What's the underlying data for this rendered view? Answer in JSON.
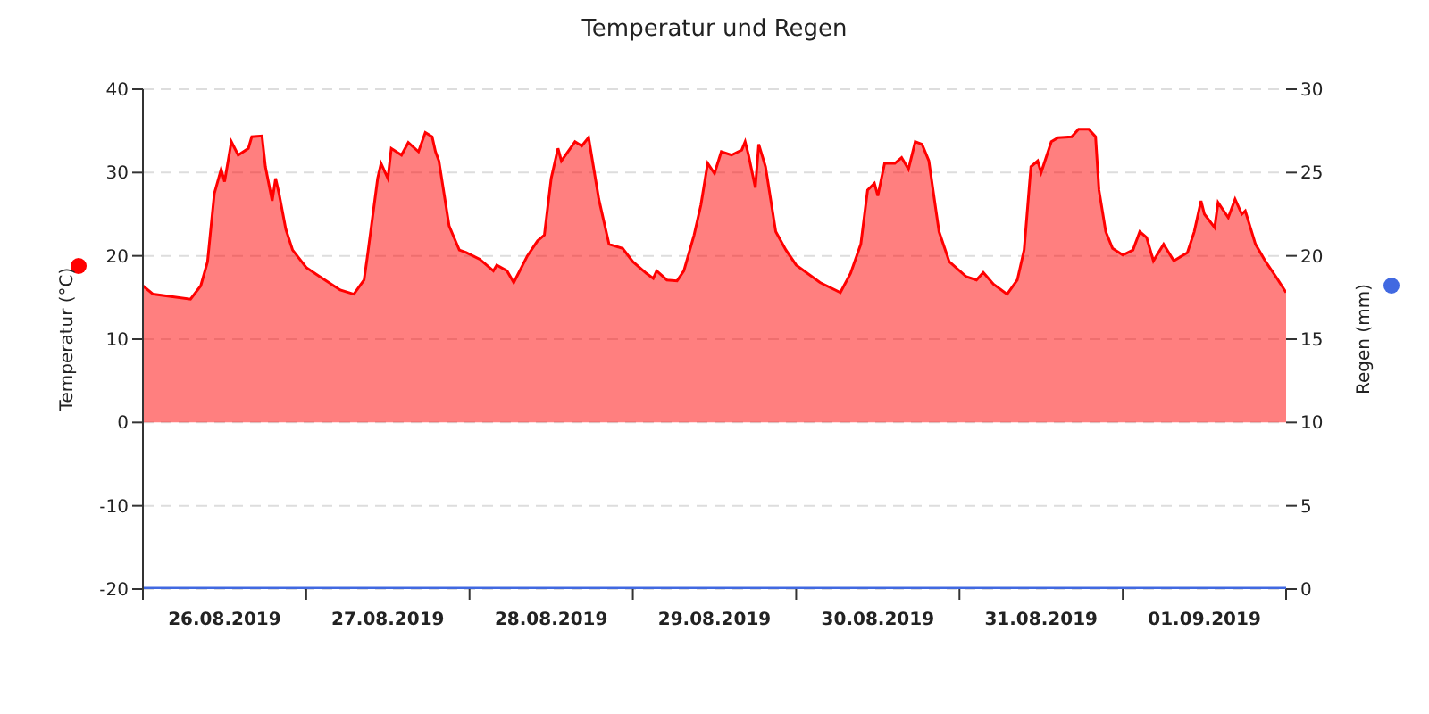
{
  "chart_data": {
    "type": "area",
    "title": "Temperatur und Regen",
    "ylabel": "Temperatur (°C)",
    "y2label": "Regen (mm)",
    "xlim": [
      "2019-08-26T00:00",
      "2019-09-02T00:00"
    ],
    "xticks": [
      {
        "value": "2019-08-26T00:00",
        "label": null
      },
      {
        "value": "2019-08-26T12:00",
        "label": "26.08.2019"
      },
      {
        "value": "2019-08-27T00:00",
        "label": null
      },
      {
        "value": "2019-08-27T12:00",
        "label": "27.08.2019"
      },
      {
        "value": "2019-08-28T00:00",
        "label": null
      },
      {
        "value": "2019-08-28T12:00",
        "label": "28.08.2019"
      },
      {
        "value": "2019-08-29T00:00",
        "label": null
      },
      {
        "value": "2019-08-29T12:00",
        "label": "29.08.2019"
      },
      {
        "value": "2019-08-30T00:00",
        "label": null
      },
      {
        "value": "2019-08-30T12:00",
        "label": "30.08.2019"
      },
      {
        "value": "2019-08-31T00:00",
        "label": null
      },
      {
        "value": "2019-08-31T12:00",
        "label": "31.08.2019"
      },
      {
        "value": "2019-09-01T00:00",
        "label": null
      },
      {
        "value": "2019-09-01T12:00",
        "label": "01.09.2019"
      },
      {
        "value": "2019-09-02T00:00",
        "label": null
      }
    ],
    "ylim": [
      -20,
      40
    ],
    "yticks": [
      -20,
      -10,
      0,
      10,
      20,
      30,
      40
    ],
    "y2lim": [
      0,
      30
    ],
    "y2ticks": [
      0,
      5,
      10,
      15,
      20,
      25,
      30
    ],
    "grid": "y",
    "legend": false,
    "series": [
      {
        "color": "#ff0000",
        "x": [
          "2019-08-26T00:00",
          "2019-08-26T01:30",
          "2019-08-26T07:00",
          "2019-08-26T08:30",
          "2019-08-26T09:30",
          "2019-08-26T10:30",
          "2019-08-26T11:30",
          "2019-08-26T12:00",
          "2019-08-26T13:00",
          "2019-08-26T14:00",
          "2019-08-26T15:30",
          "2019-08-26T16:00",
          "2019-08-26T17:30",
          "2019-08-26T18:00",
          "2019-08-26T19:00",
          "2019-08-26T19:30",
          "2019-08-26T20:00",
          "2019-08-26T21:00",
          "2019-08-26T22:00",
          "2019-08-27T00:00",
          "2019-08-27T02:00",
          "2019-08-27T05:00",
          "2019-08-27T07:00",
          "2019-08-27T08:30",
          "2019-08-27T09:00",
          "2019-08-27T10:30",
          "2019-08-27T11:00",
          "2019-08-27T12:00",
          "2019-08-27T12:30",
          "2019-08-27T14:00",
          "2019-08-27T15:00",
          "2019-08-27T16:30",
          "2019-08-27T17:30",
          "2019-08-27T18:30",
          "2019-08-27T19:00",
          "2019-08-27T19:30",
          "2019-08-27T21:00",
          "2019-08-27T22:30",
          "2019-08-27T23:30",
          "2019-08-28T01:30",
          "2019-08-28T03:30",
          "2019-08-28T04:00",
          "2019-08-28T05:30",
          "2019-08-28T06:30",
          "2019-08-28T08:30",
          "2019-08-28T10:00",
          "2019-08-28T11:00",
          "2019-08-28T12:00",
          "2019-08-28T13:00",
          "2019-08-28T13:30",
          "2019-08-28T15:30",
          "2019-08-28T16:30",
          "2019-08-28T17:30",
          "2019-08-28T19:00",
          "2019-08-28T20:30",
          "2019-08-28T22:30",
          "2019-08-29T00:00",
          "2019-08-29T02:00",
          "2019-08-29T03:00",
          "2019-08-29T03:30",
          "2019-08-29T05:00",
          "2019-08-29T06:30",
          "2019-08-29T07:30",
          "2019-08-29T09:00",
          "2019-08-29T10:00",
          "2019-08-29T11:00",
          "2019-08-29T12:00",
          "2019-08-29T13:00",
          "2019-08-29T14:30",
          "2019-08-29T16:00",
          "2019-08-29T16:30",
          "2019-08-29T17:00",
          "2019-08-29T18:00",
          "2019-08-29T18:30",
          "2019-08-29T19:30",
          "2019-08-29T21:00",
          "2019-08-29T22:30",
          "2019-08-30T00:00",
          "2019-08-30T03:30",
          "2019-08-30T06:30",
          "2019-08-30T08:00",
          "2019-08-30T09:30",
          "2019-08-30T10:30",
          "2019-08-30T11:30",
          "2019-08-30T12:00",
          "2019-08-30T13:00",
          "2019-08-30T14:30",
          "2019-08-30T15:30",
          "2019-08-30T16:30",
          "2019-08-30T17:30",
          "2019-08-30T18:30",
          "2019-08-30T19:30",
          "2019-08-30T20:30",
          "2019-08-30T21:00",
          "2019-08-30T22:30",
          "2019-08-31T01:00",
          "2019-08-31T02:30",
          "2019-08-31T03:30",
          "2019-08-31T05:00",
          "2019-08-31T07:00",
          "2019-08-31T08:30",
          "2019-08-31T09:30",
          "2019-08-31T10:30",
          "2019-08-31T11:30",
          "2019-08-31T12:00",
          "2019-08-31T13:30",
          "2019-08-31T14:30",
          "2019-08-31T16:30",
          "2019-08-31T17:30",
          "2019-08-31T19:00",
          "2019-08-31T20:00",
          "2019-08-31T20:30",
          "2019-08-31T21:30",
          "2019-08-31T22:30",
          "2019-09-01T00:00",
          "2019-09-01T01:30",
          "2019-09-01T02:30",
          "2019-09-01T03:30",
          "2019-09-01T04:30",
          "2019-09-01T06:00",
          "2019-09-01T07:30",
          "2019-09-01T09:30",
          "2019-09-01T10:30",
          "2019-09-01T11:30",
          "2019-09-01T12:00",
          "2019-09-01T13:30",
          "2019-09-01T14:00",
          "2019-09-01T15:30",
          "2019-09-01T16:30",
          "2019-09-01T17:30",
          "2019-09-01T18:00",
          "2019-09-01T19:30",
          "2019-09-01T21:00",
          "2019-09-01T22:30",
          "2019-09-02T00:00"
        ],
        "values": [
          16.4,
          15.4,
          14.8,
          16.4,
          19.3,
          27.5,
          30.4,
          28.9,
          33.7,
          32.1,
          32.9,
          34.3,
          34.4,
          30.7,
          26.6,
          29.3,
          27.5,
          23.2,
          20.7,
          18.6,
          17.5,
          15.9,
          15.4,
          17.1,
          20.0,
          29.3,
          31.1,
          29.3,
          32.9,
          32.1,
          33.6,
          32.5,
          34.8,
          34.3,
          32.5,
          31.4,
          23.6,
          20.7,
          20.4,
          19.6,
          18.2,
          18.9,
          18.2,
          16.8,
          20.0,
          21.8,
          22.5,
          29.3,
          32.9,
          31.4,
          33.7,
          33.2,
          34.2,
          26.8,
          21.4,
          20.9,
          19.3,
          17.9,
          17.3,
          18.2,
          17.1,
          17.0,
          18.2,
          22.5,
          26.1,
          31.1,
          29.9,
          32.5,
          32.1,
          32.7,
          33.7,
          32.1,
          28.2,
          33.4,
          30.7,
          22.9,
          20.7,
          18.9,
          16.8,
          15.6,
          17.9,
          21.4,
          27.9,
          28.7,
          27.2,
          31.1,
          31.1,
          31.8,
          30.4,
          33.7,
          33.4,
          31.4,
          25.7,
          22.9,
          19.3,
          17.5,
          17.1,
          18.0,
          16.6,
          15.4,
          17.1,
          20.7,
          30.7,
          31.4,
          30.0,
          33.7,
          34.2,
          34.3,
          35.2,
          35.2,
          34.3,
          27.9,
          22.9,
          20.9,
          20.1,
          20.7,
          22.9,
          22.2,
          19.4,
          21.4,
          19.4,
          20.4,
          22.9,
          26.6,
          25.0,
          23.4,
          26.4,
          24.6,
          26.8,
          25.0,
          25.4,
          21.4,
          19.3,
          17.5,
          15.6
        ]
      },
      {
        "type": "line",
        "axis": "y2",
        "color": "#4169e1",
        "x": [
          "2019-08-26T00:00",
          "2019-09-02T00:00"
        ],
        "values": [
          0,
          0
        ]
      }
    ]
  }
}
